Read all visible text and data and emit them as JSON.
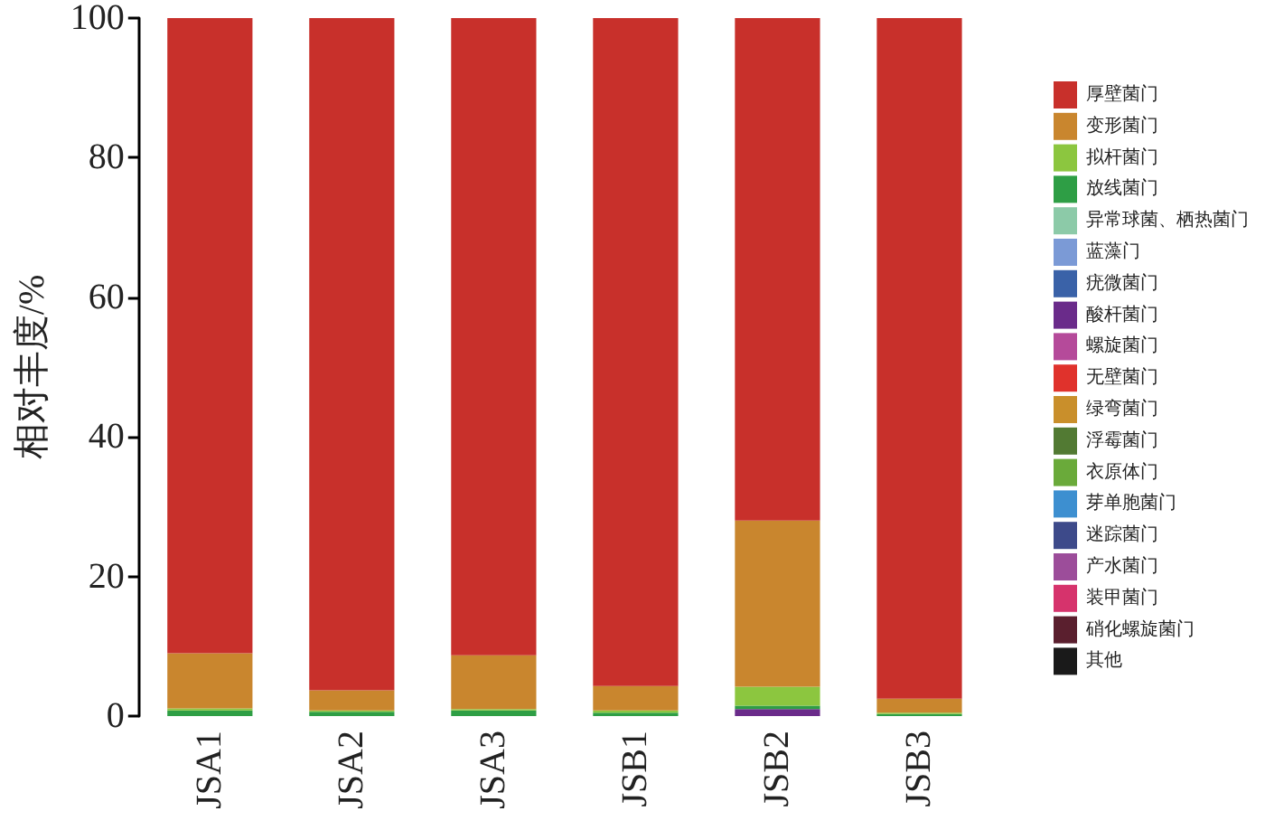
{
  "chart_data": {
    "type": "bar",
    "stacked": true,
    "ylabel": "相对丰度/%",
    "ylim": [
      0,
      100
    ],
    "yticks": [
      0,
      20,
      40,
      60,
      80,
      100
    ],
    "grid": false,
    "legend": "right",
    "categories": [
      "JSA1",
      "JSA2",
      "JSA3",
      "JSB1",
      "JSB2",
      "JSB3"
    ],
    "series": [
      {
        "name": "其他",
        "color": "#1a1a1a",
        "values": [
          0,
          0,
          0,
          0,
          0,
          0
        ]
      },
      {
        "name": "硝化螺旋菌门",
        "color": "#5a1f2e",
        "values": [
          0,
          0,
          0,
          0,
          0,
          0
        ]
      },
      {
        "name": "装甲菌门",
        "color": "#d6336c",
        "values": [
          0,
          0,
          0,
          0,
          0,
          0
        ]
      },
      {
        "name": "产水菌门",
        "color": "#9c4d9a",
        "values": [
          0,
          0,
          0,
          0,
          0,
          0
        ]
      },
      {
        "name": "迷踪菌门",
        "color": "#3d4a8a",
        "values": [
          0,
          0,
          0,
          0,
          0,
          0
        ]
      },
      {
        "name": "芽单胞菌门",
        "color": "#3d8fd0",
        "values": [
          0,
          0,
          0,
          0,
          0,
          0
        ]
      },
      {
        "name": "衣原体门",
        "color": "#6aaa3a",
        "values": [
          0,
          0,
          0,
          0,
          0,
          0
        ]
      },
      {
        "name": "浮霉菌门",
        "color": "#527a33",
        "values": [
          0,
          0,
          0,
          0,
          0,
          0
        ]
      },
      {
        "name": "绿弯菌门",
        "color": "#c98f2b",
        "values": [
          0,
          0,
          0,
          0,
          0,
          0
        ]
      },
      {
        "name": "无壁菌门",
        "color": "#e0322c",
        "values": [
          0,
          0,
          0,
          0,
          0,
          0
        ]
      },
      {
        "name": "螺旋菌门",
        "color": "#b54a9a",
        "values": [
          0,
          0,
          0,
          0,
          0,
          0
        ]
      },
      {
        "name": "酸杆菌门",
        "color": "#6a2b8a",
        "values": [
          0,
          0,
          0,
          0,
          1.0,
          0
        ]
      },
      {
        "name": "疣微菌门",
        "color": "#3a62a8",
        "values": [
          0,
          0,
          0,
          0,
          0,
          0
        ]
      },
      {
        "name": "蓝藻门",
        "color": "#7b9ad6",
        "values": [
          0,
          0,
          0,
          0,
          0,
          0
        ]
      },
      {
        "name": "异常球菌、栖热菌门",
        "color": "#8ccaa8",
        "values": [
          0,
          0,
          0,
          0,
          0,
          0
        ]
      },
      {
        "name": "放线菌门",
        "color": "#2e9e45",
        "values": [
          0.8,
          0.6,
          0.8,
          0.5,
          0.5,
          0.3
        ]
      },
      {
        "name": "拟杆菌门",
        "color": "#8cc63f",
        "values": [
          0.3,
          0.2,
          0.2,
          0.3,
          2.7,
          0.2
        ]
      },
      {
        "name": "变形菌门",
        "color": "#c9862e",
        "values": [
          7.9,
          2.9,
          7.7,
          3.5,
          23.8,
          2.0
        ]
      },
      {
        "name": "厚壁菌门",
        "color": "#c8302b",
        "values": [
          91.0,
          96.3,
          91.3,
          95.7,
          72.0,
          97.5
        ]
      }
    ]
  }
}
